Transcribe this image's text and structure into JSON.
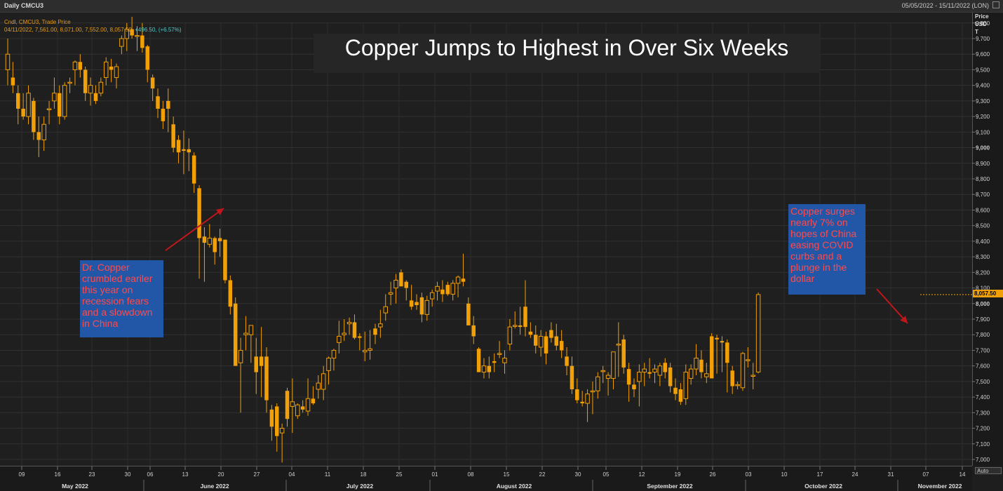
{
  "header": {
    "left_label": "Daily CMCU3",
    "date_range": "05/05/2022 - 15/11/2022 (LON)"
  },
  "legend": {
    "line1": "Cndl, CMCU3, Trade Price",
    "ohlc_text": "04/11/2022, 7,561.00, 8,071.00, 7,552.00, 8,057.50,",
    "change_text": "+496.50, (+6.57%)"
  },
  "y_axis_units": {
    "line1": "Price",
    "line2": "USD",
    "line3": "T"
  },
  "last_price_label": "8,057.50",
  "auto_button": "Auto",
  "annotations": {
    "left": "Dr. Copper crumbled eariler this year on recession fears and a slowdown in China",
    "right": "Copper surges nearly 7% on hopes of China easing COVID curbs and a plunge in the dollar"
  },
  "colors": {
    "bull": "#f2a007",
    "bear": "#f2a007",
    "arrow": "#c0171c",
    "background": "#1f1f1f",
    "annotation_box": "#2257a8"
  },
  "chart_data": {
    "type": "candlestick",
    "title": "Copper Jumps to Highest in Over Six Weeks",
    "ylabel": "Price USD T",
    "ylim": [
      6950,
      9850
    ],
    "y_ticks": [
      "7,000",
      "7,100",
      "7,200",
      "7,300",
      "7,400",
      "7,500",
      "7,600",
      "7,700",
      "7,800",
      "7,900",
      "8,000",
      "8,100",
      "8,200",
      "8,300",
      "8,400",
      "8,500",
      "8,600",
      "8,700",
      "8,800",
      "8,900",
      "9,000",
      "9,100",
      "9,200",
      "9,300",
      "9,400",
      "9,500",
      "9,600",
      "9,700",
      "9,800"
    ],
    "y_tick_values": [
      7000,
      7100,
      7200,
      7300,
      7400,
      7500,
      7600,
      7700,
      7800,
      7900,
      8000,
      8100,
      8200,
      8300,
      8400,
      8500,
      8600,
      8700,
      8800,
      8900,
      9000,
      9100,
      9200,
      9300,
      9400,
      9500,
      9600,
      9700,
      9800
    ],
    "x_day_ticks": [
      "09",
      "16",
      "23",
      "30",
      "06",
      "13",
      "20",
      "27",
      "04",
      "11",
      "18",
      "25",
      "01",
      "08",
      "15",
      "22",
      "30",
      "05",
      "12",
      "19",
      "26",
      "03",
      "10",
      "17",
      "24",
      "31",
      "07",
      "14"
    ],
    "x_month_labels": [
      "May 2022",
      "June 2022",
      "July 2022",
      "August 2022",
      "September 2022",
      "October 2022",
      "November 2022"
    ],
    "candles": [
      [
        9500,
        9700,
        9400,
        9600
      ],
      [
        9450,
        9550,
        9350,
        9400
      ],
      [
        9350,
        9400,
        9150,
        9250
      ],
      [
        9250,
        9350,
        9180,
        9200
      ],
      [
        9200,
        9400,
        9150,
        9350
      ],
      [
        9300,
        9320,
        9050,
        9100
      ],
      [
        9100,
        9200,
        8940,
        9050
      ],
      [
        9050,
        9200,
        8980,
        9150
      ],
      [
        9250,
        9300,
        9150,
        9250
      ],
      [
        9300,
        9450,
        9250,
        9350
      ],
      [
        9350,
        9400,
        9150,
        9200
      ],
      [
        9200,
        9420,
        9180,
        9400
      ],
      [
        9420,
        9450,
        9350,
        9420
      ],
      [
        9500,
        9560,
        9400,
        9550
      ],
      [
        9550,
        9600,
        9450,
        9500
      ],
      [
        9500,
        9520,
        9300,
        9350
      ],
      [
        9350,
        9450,
        9270,
        9400
      ],
      [
        9350,
        9400,
        9280,
        9300
      ],
      [
        9350,
        9450,
        9330,
        9420
      ],
      [
        9450,
        9580,
        9400,
        9550
      ],
      [
        9520,
        9570,
        9420,
        9500
      ],
      [
        9450,
        9540,
        9380,
        9520
      ],
      [
        9650,
        9720,
        9600,
        9700
      ],
      [
        9700,
        9800,
        9620,
        9760
      ],
      [
        9760,
        9840,
        9700,
        9720
      ],
      [
        9720,
        9780,
        9620,
        9720
      ],
      [
        9720,
        9800,
        9610,
        9640
      ],
      [
        9650,
        9660,
        9420,
        9500
      ],
      [
        9450,
        9470,
        9300,
        9380
      ],
      [
        9330,
        9380,
        9190,
        9250
      ],
      [
        9250,
        9300,
        9120,
        9170
      ],
      [
        9300,
        9380,
        9100,
        9250
      ],
      [
        9150,
        9200,
        8970,
        9000
      ],
      [
        9050,
        9080,
        8900,
        8970
      ],
      [
        8990,
        9110,
        8830,
        8980
      ],
      [
        8990,
        9060,
        8850,
        8970
      ],
      [
        8950,
        8970,
        8710,
        8770
      ],
      [
        8740,
        8760,
        8160,
        8420
      ],
      [
        8430,
        8490,
        8140,
        8390
      ],
      [
        8380,
        8510,
        8360,
        8420
      ],
      [
        8420,
        8430,
        8250,
        8330
      ],
      [
        8420,
        8480,
        8300,
        8400
      ],
      [
        8410,
        8410,
        8130,
        8150
      ],
      [
        8150,
        8180,
        7930,
        7980
      ],
      [
        8000,
        8040,
        7620,
        7600
      ],
      [
        7620,
        7780,
        7300,
        7700
      ],
      [
        7800,
        7920,
        7700,
        7810
      ],
      [
        7800,
        7860,
        7620,
        7860
      ],
      [
        7660,
        7780,
        7420,
        7560
      ],
      [
        7660,
        7850,
        7400,
        7600
      ],
      [
        7660,
        7720,
        7300,
        7380
      ],
      [
        7320,
        7350,
        7120,
        7210
      ],
      [
        7340,
        7360,
        7050,
        7150
      ],
      [
        7170,
        7230,
        6980,
        7200
      ],
      [
        7440,
        7460,
        7210,
        7260
      ],
      [
        7340,
        7520,
        7170,
        7370
      ],
      [
        7280,
        7360,
        7260,
        7350
      ],
      [
        7340,
        7380,
        7300,
        7320
      ],
      [
        7310,
        7520,
        7280,
        7390
      ],
      [
        7390,
        7470,
        7350,
        7360
      ],
      [
        7450,
        7540,
        7390,
        7490
      ],
      [
        7450,
        7600,
        7380,
        7550
      ],
      [
        7570,
        7660,
        7480,
        7650
      ],
      [
        7650,
        7710,
        7570,
        7700
      ],
      [
        7750,
        7890,
        7680,
        7790
      ],
      [
        7800,
        7900,
        7760,
        7810
      ],
      [
        7870,
        7910,
        7800,
        7880
      ],
      [
        7880,
        7930,
        7770,
        7780
      ],
      [
        7790,
        7810,
        7700,
        7780
      ],
      [
        7690,
        7820,
        7630,
        7700
      ],
      [
        7700,
        7830,
        7640,
        7710
      ],
      [
        7840,
        7870,
        7740,
        7800
      ],
      [
        7850,
        7960,
        7780,
        7870
      ],
      [
        7940,
        8060,
        7890,
        7980
      ],
      [
        8060,
        8140,
        7990,
        8070
      ],
      [
        8100,
        8190,
        8000,
        8150
      ],
      [
        8200,
        8220,
        8120,
        8110
      ],
      [
        8140,
        8150,
        8020,
        8100
      ],
      [
        8020,
        8120,
        7960,
        7980
      ],
      [
        8010,
        8060,
        7960,
        7990
      ],
      [
        8040,
        8070,
        7880,
        7930
      ],
      [
        7930,
        8050,
        7890,
        8020
      ],
      [
        8030,
        8090,
        7980,
        8070
      ],
      [
        8080,
        8140,
        8020,
        8110
      ],
      [
        8090,
        8150,
        8010,
        8060
      ],
      [
        8120,
        8140,
        8050,
        8060
      ],
      [
        8060,
        8150,
        8020,
        8130
      ],
      [
        8130,
        8180,
        8040,
        8170
      ],
      [
        8160,
        8320,
        8110,
        8140
      ],
      [
        8000,
        8040,
        7860,
        7860
      ],
      [
        7860,
        7920,
        7740,
        7790
      ],
      [
        7710,
        7720,
        7560,
        7560
      ],
      [
        7560,
        7650,
        7520,
        7600
      ],
      [
        7600,
        7660,
        7520,
        7560
      ],
      [
        7630,
        7680,
        7560,
        7620
      ],
      [
        7680,
        7760,
        7650,
        7680
      ],
      [
        7620,
        7700,
        7550,
        7650
      ],
      [
        7740,
        7900,
        7700,
        7850
      ],
      [
        7860,
        7950,
        7840,
        7860
      ],
      [
        7860,
        7980,
        7800,
        7850
      ],
      [
        7980,
        8150,
        7790,
        7850
      ],
      [
        7820,
        7880,
        7780,
        7800
      ],
      [
        7800,
        7860,
        7680,
        7730
      ],
      [
        7720,
        7830,
        7660,
        7790
      ],
      [
        7790,
        7820,
        7610,
        7680
      ],
      [
        7830,
        7880,
        7750,
        7780
      ],
      [
        7790,
        7870,
        7700,
        7730
      ],
      [
        7760,
        7830,
        7650,
        7700
      ],
      [
        7660,
        7720,
        7540,
        7600
      ],
      [
        7600,
        7660,
        7420,
        7450
      ],
      [
        7450,
        7520,
        7360,
        7380
      ],
      [
        7370,
        7440,
        7340,
        7360
      ],
      [
        7360,
        7450,
        7240,
        7420
      ],
      [
        7440,
        7500,
        7290,
        7440
      ],
      [
        7440,
        7560,
        7390,
        7530
      ],
      [
        7570,
        7600,
        7490,
        7570
      ],
      [
        7520,
        7560,
        7410,
        7540
      ],
      [
        7520,
        7690,
        7450,
        7690
      ],
      [
        7740,
        7880,
        7530,
        7740
      ],
      [
        7770,
        7800,
        7550,
        7590
      ],
      [
        7580,
        7620,
        7370,
        7480
      ],
      [
        7480,
        7520,
        7400,
        7450
      ],
      [
        7500,
        7610,
        7340,
        7560
      ],
      [
        7560,
        7620,
        7470,
        7580
      ],
      [
        7560,
        7650,
        7520,
        7550
      ],
      [
        7560,
        7610,
        7490,
        7580
      ],
      [
        7540,
        7620,
        7470,
        7600
      ],
      [
        7620,
        7650,
        7520,
        7560
      ],
      [
        7590,
        7620,
        7430,
        7470
      ],
      [
        7460,
        7520,
        7380,
        7420
      ],
      [
        7450,
        7490,
        7350,
        7370
      ],
      [
        7390,
        7610,
        7350,
        7560
      ],
      [
        7520,
        7610,
        7480,
        7580
      ],
      [
        7580,
        7740,
        7540,
        7650
      ],
      [
        7640,
        7700,
        7520,
        7560
      ],
      [
        7530,
        7620,
        7490,
        7550
      ],
      [
        7790,
        7810,
        7520,
        7520
      ],
      [
        7780,
        7800,
        7550,
        7770
      ],
      [
        7760,
        7790,
        7560,
        7750
      ],
      [
        7750,
        7770,
        7430,
        7620
      ],
      [
        7570,
        7600,
        7420,
        7470
      ],
      [
        7480,
        7500,
        7450,
        7480
      ],
      [
        7460,
        7690,
        7440,
        7680
      ],
      [
        7640,
        7720,
        7590,
        7640
      ],
      [
        7540,
        7620,
        7450,
        7540
      ],
      [
        7561,
        8071,
        7552,
        8057.5
      ]
    ]
  }
}
